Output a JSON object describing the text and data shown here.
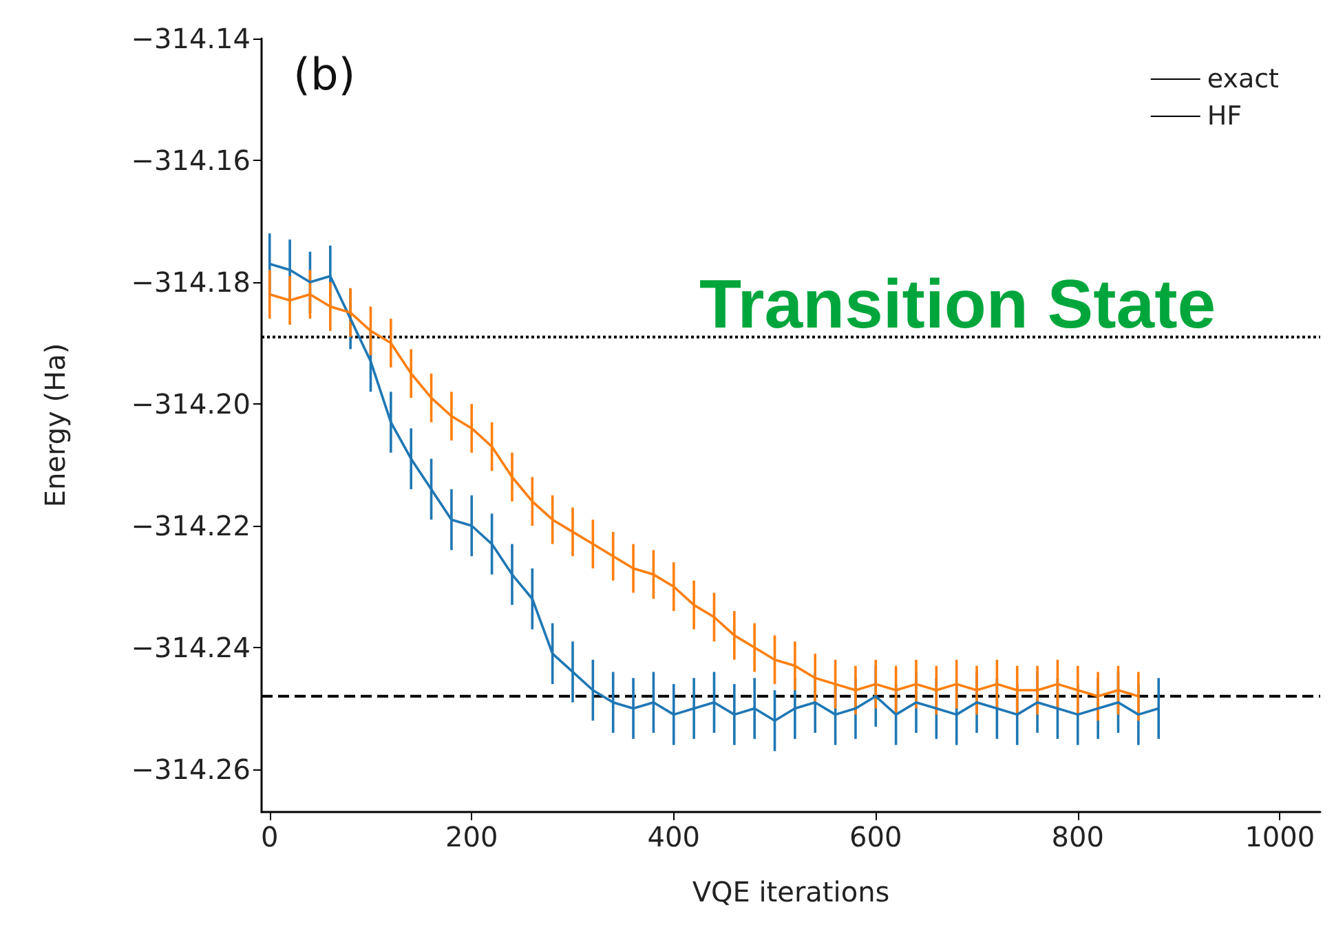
{
  "chart_data": {
    "type": "line",
    "annotations": [
      "(b)",
      "Transition State"
    ],
    "xlabel": "VQE iterations",
    "ylabel": "Energy (Ha)",
    "xlim": [
      -8,
      1040
    ],
    "xticks": [
      0,
      200,
      400,
      600,
      800,
      1000
    ],
    "ylim": [
      -314.267,
      -314.14
    ],
    "yticks": [
      {
        "value": -314.26,
        "label": "−314.26"
      },
      {
        "value": -314.24,
        "label": "−314.24"
      },
      {
        "value": -314.22,
        "label": "−314.22"
      },
      {
        "value": -314.2,
        "label": "−314.20"
      },
      {
        "value": -314.18,
        "label": "−314.18"
      },
      {
        "value": -314.16,
        "label": "−314.16"
      },
      {
        "value": -314.14,
        "label": "−314.14"
      }
    ],
    "grid": false,
    "legend": "top right",
    "marker": "none",
    "ref_lines": [
      {
        "axis": "y",
        "value": -314.248,
        "label": "exact",
        "color": "#000000",
        "line_style": "dashed"
      },
      {
        "axis": "y",
        "value": -314.189,
        "label": "HF",
        "color": "#000000",
        "line_style": "dotted"
      }
    ],
    "series": [
      {
        "color": "#1f77b4",
        "x": [
          0,
          20,
          40,
          60,
          80,
          100,
          120,
          140,
          160,
          180,
          200,
          220,
          240,
          260,
          280,
          300,
          320,
          340,
          360,
          380,
          400,
          420,
          440,
          460,
          480,
          500,
          520,
          540,
          560,
          580,
          600,
          620,
          640,
          660,
          680,
          700,
          720,
          740,
          760,
          780,
          800,
          820,
          840,
          860,
          880
        ],
        "values": [
          -314.177,
          -314.178,
          -314.18,
          -314.179,
          -314.186,
          -314.193,
          -314.203,
          -314.209,
          -314.214,
          -314.219,
          -314.22,
          -314.223,
          -314.228,
          -314.232,
          -314.241,
          -314.244,
          -314.247,
          -314.249,
          -314.25,
          -314.249,
          -314.251,
          -314.25,
          -314.249,
          -314.251,
          -314.25,
          -314.252,
          -314.25,
          -314.249,
          -314.251,
          -314.25,
          -314.248,
          -314.251,
          -314.249,
          -314.25,
          -314.251,
          -314.249,
          -314.25,
          -314.251,
          -314.249,
          -314.25,
          -314.251,
          -314.25,
          -314.249,
          -314.251,
          -314.25
        ],
        "errors": [
          0.005,
          0.005,
          0.005,
          0.005,
          0.005,
          0.005,
          0.005,
          0.005,
          0.005,
          0.005,
          0.005,
          0.005,
          0.005,
          0.005,
          0.005,
          0.005,
          0.005,
          0.005,
          0.005,
          0.005,
          0.005,
          0.005,
          0.005,
          0.005,
          0.005,
          0.005,
          0.005,
          0.005,
          0.005,
          0.005,
          0.005,
          0.005,
          0.005,
          0.005,
          0.005,
          0.005,
          0.005,
          0.005,
          0.005,
          0.005,
          0.005,
          0.005,
          0.005,
          0.005,
          0.005
        ]
      },
      {
        "color": "#ff7f0e",
        "x": [
          0,
          20,
          40,
          60,
          80,
          100,
          120,
          140,
          160,
          180,
          200,
          220,
          240,
          260,
          280,
          300,
          320,
          340,
          360,
          380,
          400,
          420,
          440,
          460,
          480,
          500,
          520,
          540,
          560,
          580,
          600,
          620,
          640,
          660,
          680,
          700,
          720,
          740,
          760,
          780,
          800,
          820,
          840,
          860
        ],
        "values": [
          -314.182,
          -314.183,
          -314.182,
          -314.184,
          -314.185,
          -314.188,
          -314.19,
          -314.195,
          -314.199,
          -314.202,
          -314.204,
          -314.207,
          -314.212,
          -314.216,
          -314.219,
          -314.221,
          -314.223,
          -314.225,
          -314.227,
          -314.228,
          -314.23,
          -314.233,
          -314.235,
          -314.238,
          -314.24,
          -314.242,
          -314.243,
          -314.245,
          -314.246,
          -314.247,
          -314.246,
          -314.247,
          -314.246,
          -314.247,
          -314.246,
          -314.247,
          -314.246,
          -314.247,
          -314.247,
          -314.246,
          -314.247,
          -314.248,
          -314.247,
          -314.248
        ],
        "errors": [
          0.004,
          0.004,
          0.004,
          0.004,
          0.004,
          0.004,
          0.004,
          0.004,
          0.004,
          0.004,
          0.004,
          0.004,
          0.004,
          0.004,
          0.004,
          0.004,
          0.004,
          0.004,
          0.004,
          0.004,
          0.004,
          0.004,
          0.004,
          0.004,
          0.004,
          0.004,
          0.004,
          0.004,
          0.004,
          0.004,
          0.004,
          0.004,
          0.004,
          0.004,
          0.004,
          0.004,
          0.004,
          0.004,
          0.004,
          0.004,
          0.004,
          0.004,
          0.004,
          0.004
        ]
      }
    ]
  }
}
